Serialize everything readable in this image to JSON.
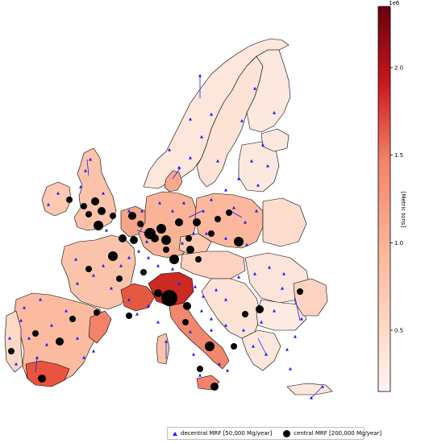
{
  "map": {
    "colorbar": {
      "label": "[Metric tons]",
      "exponent": "1e6",
      "ticks": [
        "0.5",
        "1.0",
        "1.5",
        "2.0"
      ],
      "tick_values": [
        0.5,
        1.0,
        1.5,
        2.0
      ],
      "range": [
        0.15,
        2.35
      ],
      "color_low": "#fff0e8",
      "color_mid": "#f2836a",
      "color_high": "#67000d"
    },
    "legend": {
      "decentral": "decentral MRF [50,000 Mg/year]",
      "central": "central MRF [200,000 Mg/year]"
    },
    "marker_colors": {
      "decentral": "#1a1aff",
      "central": "#000000"
    }
  }
}
